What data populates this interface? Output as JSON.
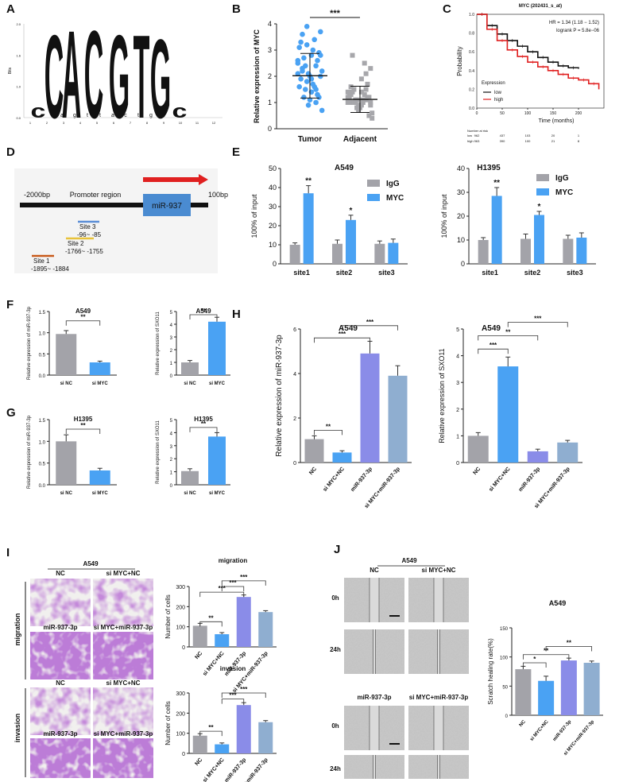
{
  "colors": {
    "gray": "#a3a3a9",
    "blue": "#4aa2f3",
    "purple": "#8a8ce8",
    "steel": "#8faed0",
    "red": "#e02020",
    "sig": "#222222"
  },
  "panel_letters": [
    "A",
    "B",
    "C",
    "D",
    "E",
    "F",
    "G",
    "H",
    "I",
    "J"
  ],
  "A": {
    "letters": [
      "c",
      "C",
      "A",
      "C",
      "G",
      "T",
      "G",
      "c"
    ],
    "colors": [
      "#2a5fa8",
      "#2a5fa8",
      "#3f9e3f",
      "#2a5fa8",
      "#f3a41d",
      "#d8302a",
      "#f3a41d",
      "#2a5fa8"
    ],
    "heights": [
      0.3,
      1.9,
      2.0,
      2.0,
      1.9,
      1.9,
      1.8,
      0.3
    ],
    "yticks": [
      "0.0",
      "1.0",
      "1.6",
      "2.0"
    ],
    "ylabel": "Bits",
    "xticks": [
      "1",
      "2",
      "3",
      "4",
      "5",
      "6",
      "7",
      "8",
      "9",
      "10",
      "11",
      "12"
    ]
  },
  "chart_data": [
    {
      "panel": "B",
      "type": "scatter",
      "ylabel": "Relative expression of MYC",
      "categories": [
        "Tumor",
        "Adjacent"
      ],
      "ylim": [
        0,
        4
      ],
      "yticks": [
        "0",
        "1",
        "2",
        "3",
        "4"
      ],
      "means": [
        2.02,
        1.12
      ],
      "sd": [
        0.85,
        0.5
      ],
      "significance": "***",
      "points": [
        [
          2.1,
          3.6,
          3.2,
          2.8,
          2.4,
          2.0,
          1.6,
          1.2,
          0.9,
          3.0,
          2.6,
          2.2,
          1.9,
          1.5,
          1.1,
          3.4,
          2.9,
          2.5,
          2.3,
          1.8,
          1.4,
          1.0,
          3.7,
          3.1,
          2.7,
          2.1,
          1.7,
          1.3,
          0.7,
          3.3,
          2.4,
          2.0,
          1.6,
          1.2,
          2.6,
          2.2,
          3.9,
          1.9,
          1.5,
          2.8
        ],
        [
          1.2,
          1.0,
          0.8,
          1.4,
          1.1,
          0.9,
          1.3,
          1.5,
          0.7,
          1.0,
          1.2,
          0.6,
          1.6,
          1.1,
          0.9,
          1.3,
          0.5,
          1.0,
          1.4,
          0.8,
          1.9,
          2.1,
          2.3,
          1.2,
          1.0,
          0.9,
          1.1,
          1.7,
          0.4,
          1.3,
          1.0,
          0.8,
          2.5,
          1.2,
          1.4,
          2.8,
          1.1,
          0.9,
          1.5,
          1.0
        ]
      ]
    },
    {
      "panel": "C",
      "type": "line",
      "title": "MYC (202431_s_at)",
      "xlabel": "Time (months)",
      "ylabel": "Probability",
      "xlim": [
        0,
        250
      ],
      "ylim": [
        0,
        1
      ],
      "xticks": [
        "0",
        "50",
        "100",
        "150",
        "200"
      ],
      "yticks": [
        "0.0",
        "0.2",
        "0.4",
        "0.6",
        "0.8",
        "1.0"
      ],
      "stats": [
        "HR = 1.34 (1.18 − 1.52)",
        "logrank P = 5.8e−06"
      ],
      "legend_title": "Expression",
      "series": [
        {
          "name": "low",
          "x": [
            0,
            20,
            40,
            60,
            80,
            100,
            120,
            140,
            160,
            180,
            200
          ],
          "y": [
            1,
            0.88,
            0.79,
            0.72,
            0.66,
            0.6,
            0.54,
            0.49,
            0.45,
            0.43,
            0.42
          ]
        },
        {
          "name": "high",
          "x": [
            0,
            20,
            40,
            60,
            80,
            100,
            120,
            140,
            160,
            180,
            200,
            220,
            240
          ],
          "y": [
            1,
            0.84,
            0.72,
            0.62,
            0.55,
            0.49,
            0.44,
            0.4,
            0.36,
            0.32,
            0.3,
            0.26,
            0.2
          ]
        }
      ],
      "risk_header": "Number at risk",
      "risk": [
        {
          "group": "low",
          "values": [
            "962",
            "437",
            "103",
            "20",
            "1"
          ]
        },
        {
          "group": "high",
          "values": [
            "963",
            "390",
            "100",
            "21",
            "8"
          ]
        }
      ]
    },
    {
      "panel": "E1",
      "type": "bar",
      "title": "A549",
      "ylabel": "100% of input",
      "categories": [
        "site1",
        "site2",
        "site3"
      ],
      "ylim": [
        0,
        50
      ],
      "yticks": [
        "0",
        "10",
        "20",
        "30",
        "40",
        "50"
      ],
      "series": [
        {
          "name": "IgG",
          "values": [
            10,
            10.5,
            10.5
          ],
          "err": [
            1,
            2,
            1.5
          ]
        },
        {
          "name": "MYC",
          "values": [
            37,
            23,
            11
          ],
          "err": [
            4,
            2.5,
            2
          ]
        }
      ],
      "sig": [
        "**",
        "*",
        ""
      ]
    },
    {
      "panel": "E2",
      "type": "bar",
      "title": "H1395",
      "ylabel": "100% of input",
      "categories": [
        "site1",
        "site2",
        "site3"
      ],
      "ylim": [
        0,
        40
      ],
      "yticks": [
        "0",
        "10",
        "20",
        "30",
        "40"
      ],
      "series": [
        {
          "name": "IgG",
          "values": [
            10,
            10.5,
            10.5
          ],
          "err": [
            1,
            2,
            1.5
          ]
        },
        {
          "name": "MYC",
          "values": [
            28.5,
            20.5,
            11
          ],
          "err": [
            3.5,
            1.5,
            2
          ]
        }
      ],
      "sig": [
        "**",
        "*",
        ""
      ]
    },
    {
      "panel": "F1",
      "type": "bar",
      "title": "A549",
      "ylabel": "Relative expression of miR-937-3p",
      "categories": [
        "si NC",
        "si MYC"
      ],
      "ylim": [
        0,
        1.5
      ],
      "yticks": [
        "0.0",
        "0.5",
        "1.0",
        "1.5"
      ],
      "values": [
        0.97,
        0.3
      ],
      "err": [
        0.08,
        0.03
      ],
      "colors": [
        "gray",
        "blue"
      ],
      "brackets": [
        {
          "a": 0,
          "b": 1,
          "y": 1.28,
          "s": "**"
        }
      ]
    },
    {
      "panel": "F2",
      "type": "bar",
      "title": "A549",
      "ylabel": "Relative expression of SXO11",
      "categories": [
        "si NC",
        "si MYC"
      ],
      "ylim": [
        0,
        5
      ],
      "yticks": [
        "0",
        "1",
        "2",
        "3",
        "4",
        "5"
      ],
      "values": [
        1,
        4.2
      ],
      "err": [
        0.15,
        0.35
      ],
      "colors": [
        "gray",
        "blue"
      ],
      "brackets": [
        {
          "a": 0,
          "b": 1,
          "y": 4.75,
          "s": "**"
        }
      ]
    },
    {
      "panel": "G1",
      "type": "bar",
      "title": "H1395",
      "ylabel": "Relative expression of miR-937-3p",
      "categories": [
        "si NC",
        "si MYC"
      ],
      "ylim": [
        0,
        1.5
      ],
      "yticks": [
        "0.0",
        "0.5",
        "1.0",
        "1.5"
      ],
      "values": [
        1,
        0.33
      ],
      "err": [
        0.15,
        0.05
      ],
      "colors": [
        "gray",
        "blue"
      ],
      "brackets": [
        {
          "a": 0,
          "b": 1,
          "y": 1.28,
          "s": "**"
        }
      ]
    },
    {
      "panel": "G2",
      "type": "bar",
      "title": "H1395",
      "ylabel": "Relative expression of SXO11",
      "categories": [
        "si NC",
        "si MYC"
      ],
      "ylim": [
        0,
        5
      ],
      "yticks": [
        "0",
        "1",
        "2",
        "3",
        "4",
        "5"
      ],
      "values": [
        1.05,
        3.7
      ],
      "err": [
        0.18,
        0.3
      ],
      "colors": [
        "gray",
        "blue"
      ],
      "brackets": [
        {
          "a": 0,
          "b": 1,
          "y": 4.4,
          "s": "**"
        }
      ]
    },
    {
      "panel": "H1",
      "type": "bar",
      "title": "A549",
      "ylabel": "Relative expression of miR-937-3p",
      "categories": [
        "NC",
        "si MYC+NC",
        "miR-937-3p",
        "si MYC+miR-937-3p"
      ],
      "ylim": [
        0,
        6
      ],
      "yticks": [
        "0",
        "2",
        "4",
        "6"
      ],
      "values": [
        1.05,
        0.45,
        4.9,
        3.9
      ],
      "err": [
        0.15,
        0.08,
        0.55,
        0.45
      ],
      "colors": [
        "gray",
        "blue",
        "purple",
        "steel"
      ],
      "brackets": [
        {
          "a": 0,
          "b": 1,
          "y": 1.45,
          "s": "**"
        },
        {
          "a": 0,
          "b": 2,
          "y": 5.6,
          "s": "***"
        },
        {
          "a": 1,
          "b": 3,
          "y": 6.15,
          "s": "***"
        }
      ]
    },
    {
      "panel": "H2",
      "type": "bar",
      "title": "A549",
      "ylabel": "Relative expression of SXO11",
      "categories": [
        "NC",
        "si MYC+NC",
        "miR-937-3p",
        "si MYC+miR-937-3p"
      ],
      "ylim": [
        0,
        5
      ],
      "yticks": [
        "0",
        "1",
        "2",
        "3",
        "4",
        "5"
      ],
      "values": [
        1,
        3.6,
        0.42,
        0.75
      ],
      "err": [
        0.12,
        0.35,
        0.08,
        0.08
      ],
      "colors": [
        "gray",
        "blue",
        "purple",
        "steel"
      ],
      "brackets": [
        {
          "a": 0,
          "b": 1,
          "y": 4.25,
          "s": "***"
        },
        {
          "a": 0,
          "b": 2,
          "y": 4.75,
          "s": "**"
        },
        {
          "a": 1,
          "b": 3,
          "y": 5.25,
          "s": "***"
        }
      ]
    },
    {
      "panel": "I1",
      "type": "bar",
      "title": "migration",
      "ylabel": "Number of cells",
      "categories": [
        "NC",
        "si MYC+NC",
        "miR-937-3p",
        "si MYC+miR-937-3p"
      ],
      "ylim": [
        0,
        300
      ],
      "yticks": [
        "0",
        "100",
        "200",
        "300"
      ],
      "values": [
        105,
        63,
        248,
        173
      ],
      "err": [
        12,
        8,
        10,
        7
      ],
      "colors": [
        "gray",
        "blue",
        "purple",
        "steel"
      ],
      "brackets": [
        {
          "a": 0,
          "b": 1,
          "y": 125,
          "s": "**"
        },
        {
          "a": 0,
          "b": 2,
          "y": 272,
          "s": "***"
        },
        {
          "a": 1,
          "b": 2,
          "y": 300,
          "s": "***"
        },
        {
          "a": 1,
          "b": 3,
          "y": 328,
          "s": "***"
        }
      ]
    },
    {
      "panel": "I2",
      "type": "bar",
      "title": "invasion",
      "ylabel": "Number of cells",
      "categories": [
        "NC",
        "si MYC+NC",
        "miR-937-3p",
        "si MYC+miR-937-3p"
      ],
      "ylim": [
        0,
        300
      ],
      "yticks": [
        "0",
        "100",
        "200",
        "300"
      ],
      "values": [
        88,
        45,
        240,
        155
      ],
      "err": [
        10,
        7,
        12,
        8
      ],
      "colors": [
        "gray",
        "blue",
        "purple",
        "steel"
      ],
      "brackets": [
        {
          "a": 0,
          "b": 1,
          "y": 110,
          "s": "**"
        },
        {
          "a": 1,
          "b": 2,
          "y": 270,
          "s": "***"
        },
        {
          "a": 1,
          "b": 3,
          "y": 300,
          "s": "***"
        }
      ]
    },
    {
      "panel": "J",
      "type": "bar",
      "title": "A549",
      "ylabel": "Scratch healing rate(%)",
      "categories": [
        "NC",
        "si MYC+NC",
        "miR-937-3p",
        "si MYC+miR-937-3p"
      ],
      "ylim": [
        0,
        150
      ],
      "yticks": [
        "0",
        "50",
        "100",
        "150"
      ],
      "values": [
        79,
        59,
        94,
        90
      ],
      "err": [
        5,
        8,
        4,
        3
      ],
      "colors": [
        "gray",
        "blue",
        "purple",
        "steel"
      ],
      "brackets": [
        {
          "a": 0,
          "b": 1,
          "y": 90,
          "s": "*"
        },
        {
          "a": 0,
          "b": 2,
          "y": 104,
          "s": "**"
        },
        {
          "a": 1,
          "b": 3,
          "y": 118,
          "s": "**"
        }
      ]
    }
  ],
  "D": {
    "left": "-2000bp",
    "promoter": "Promoter region",
    "gene": "miR-937",
    "right": "100bp",
    "sites": [
      {
        "name": "Site 3",
        "range": "-96~ -85",
        "color": "#5b8ed6"
      },
      {
        "name": "Site 2",
        "range": "-1766~ -1755",
        "color": "#e8c23a"
      },
      {
        "name": "Site 1",
        "range": "-1895~ -1884",
        "color": "#c85a1a"
      }
    ]
  },
  "E_legend": [
    "IgG",
    "MYC"
  ],
  "I_images": {
    "top": "A549",
    "migration_label": "migration",
    "invasion_label": "invasion",
    "groups": [
      "NC",
      "si MYC+NC",
      "miR-937-3p",
      "si MYC+miR-937-3p"
    ]
  },
  "J_images": {
    "top": "A549",
    "groups": [
      "NC",
      "si MYC+NC",
      "miR-937-3p",
      "si MYC+miR-937-3p"
    ],
    "times": [
      "0h",
      "24h"
    ]
  }
}
